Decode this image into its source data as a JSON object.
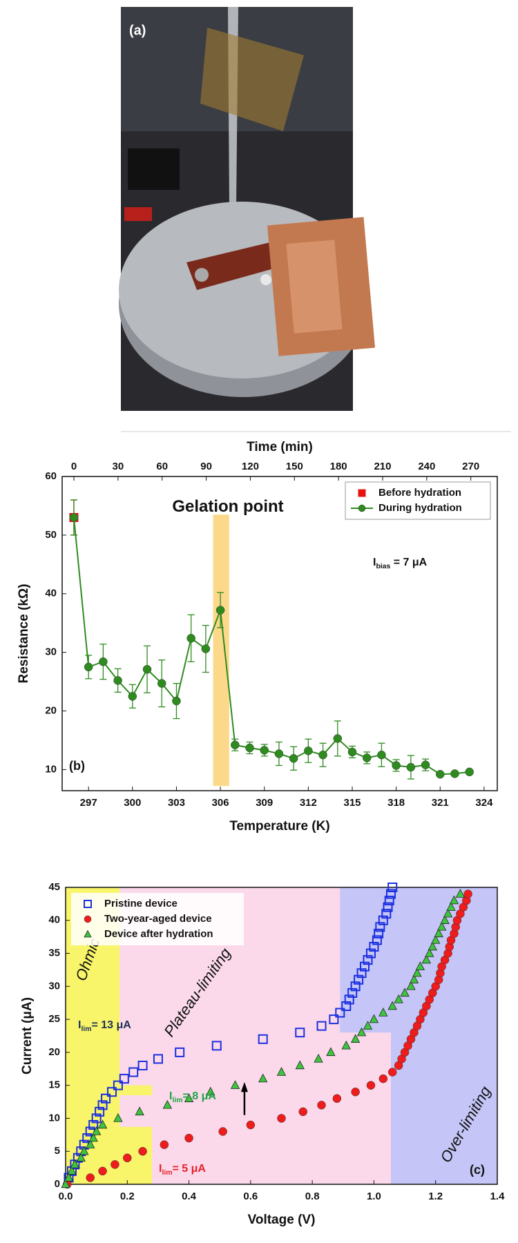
{
  "photo": {
    "label": "(a)"
  },
  "chart_data": [
    {
      "type": "line",
      "panel_label": "(b)",
      "xlabel": "Temperature (K)",
      "x2label": "Time (min)",
      "ylabel": "Resistance (kΩ)",
      "xlim": [
        295.2,
        324.9
      ],
      "xticks": [
        297,
        300,
        303,
        306,
        309,
        312,
        315,
        318,
        321,
        324
      ],
      "x2lim": [
        -8,
        288
      ],
      "x2ticks": [
        0,
        30,
        60,
        90,
        120,
        150,
        180,
        210,
        240,
        270
      ],
      "ylim": [
        6.4,
        60
      ],
      "yticks": [
        10,
        20,
        30,
        40,
        50,
        60
      ],
      "legend": "upper right",
      "band": {
        "x": [
          305.5,
          306.6
        ],
        "y": [
          7.2,
          53.5
        ],
        "color": "#fcd98a"
      },
      "annotations": [
        {
          "parts": [
            "Gelation point"
          ]
        },
        {
          "parts": [
            "I",
            "bias",
            " = 7 μA"
          ]
        }
      ],
      "series": [
        {
          "name": "Before hydration",
          "color": "#e81010",
          "marker": "square",
          "x": [
            296
          ],
          "values": [
            53
          ],
          "errors": [
            3
          ]
        },
        {
          "name": "During hydration",
          "color": "#2e8b1e",
          "marker": "circle",
          "x": [
            296,
            297,
            298,
            299,
            300,
            301,
            302,
            303,
            304,
            305,
            306,
            307,
            308,
            309,
            310,
            311,
            312,
            313,
            314,
            315,
            316,
            317,
            318,
            319,
            320,
            321,
            322,
            323
          ],
          "values": [
            53,
            27.5,
            28.4,
            25.2,
            22.5,
            27.1,
            24.7,
            21.7,
            32.4,
            30.6,
            37.2,
            14.2,
            13.7,
            13.3,
            12.7,
            11.9,
            13.2,
            12.5,
            15.3,
            13,
            12,
            12.5,
            10.7,
            10.4,
            10.8,
            9.2,
            9.3,
            9.6
          ],
          "errors": [
            3,
            2,
            3,
            2,
            2,
            4,
            4,
            3,
            4,
            4,
            3,
            1,
            1,
            1,
            2,
            2,
            2,
            2,
            3,
            1,
            1,
            2,
            1,
            2,
            1,
            0,
            0,
            0
          ]
        }
      ]
    },
    {
      "type": "scatter",
      "panel_label": "(c)",
      "xlabel": "Voltage (V)",
      "ylabel": "Current (μA)",
      "xlim": [
        0,
        1.4
      ],
      "xticks": [
        {
          "value": 0,
          "label": "0.0"
        },
        {
          "value": 0.2,
          "label": "0.2"
        },
        {
          "value": 0.4,
          "label": "0.4"
        },
        {
          "value": 0.6,
          "label": "0.6"
        },
        {
          "value": 0.8,
          "label": "0.8"
        },
        {
          "value": 1,
          "label": "1.0"
        },
        {
          "value": 1.2,
          "label": "1.2"
        },
        {
          "value": 1.4,
          "label": "1.4"
        }
      ],
      "ylim": [
        0,
        45
      ],
      "yticks": [
        0,
        5,
        10,
        15,
        20,
        25,
        30,
        35,
        40,
        45
      ],
      "legend": "upper left",
      "regions": [
        {
          "x": [
            0.175,
            1.055
          ],
          "y": [
            0,
            45
          ],
          "color": "#fbd9ea"
        },
        {
          "x": [
            0,
            0.175
          ],
          "y": [
            0,
            45
          ],
          "color": "#f8f56a"
        },
        {
          "x": [
            0.175,
            0.28
          ],
          "y": [
            0,
            8.7
          ],
          "color": "#f8f56a"
        },
        {
          "x": [
            0.175,
            0.28
          ],
          "y": [
            13.5,
            15
          ],
          "color": "#f8f56a"
        },
        {
          "x": [
            0.89,
            1.4
          ],
          "y": [
            23,
            45
          ],
          "color": "#c5c5f7"
        },
        {
          "x": [
            1.055,
            1.4
          ],
          "y": [
            0,
            45
          ],
          "color": "#c5c5f7"
        }
      ],
      "region_labels": [
        "Ohmic",
        "Plateau-limiting",
        "Over-limiting"
      ],
      "annotations": [
        {
          "parts": [
            "I",
            "lim",
            "= 13 μA"
          ],
          "color": "#1f2f5a"
        },
        {
          "parts": [
            "I",
            "lim",
            "= 8 μA"
          ],
          "color": "#1fa34a"
        },
        {
          "parts": [
            "I",
            "lim",
            "= 5 μA"
          ],
          "color": "#e8202a"
        }
      ],
      "series": [
        {
          "name": "Pristine device",
          "color": "#1a2fe0",
          "marker": "square",
          "x": [
            0.01,
            0.02,
            0.03,
            0.04,
            0.05,
            0.06,
            0.07,
            0.08,
            0.09,
            0.1,
            0.11,
            0.12,
            0.13,
            0.15,
            0.17,
            0.19,
            0.22,
            0.25,
            0.3,
            0.37,
            0.49,
            0.64,
            0.76,
            0.83,
            0.87,
            0.89,
            0.91,
            0.92,
            0.93,
            0.94,
            0.95,
            0.96,
            0.97,
            0.98,
            0.99,
            1,
            1.01,
            1.015,
            1.02,
            1.03,
            1.04,
            1.045,
            1.05,
            1.055,
            1.06
          ],
          "values": [
            1,
            2,
            3,
            4,
            5,
            6,
            7,
            8,
            9,
            10,
            11,
            12,
            13,
            14,
            15,
            16,
            17,
            18,
            19,
            20,
            21,
            22,
            23,
            24,
            25,
            26,
            27,
            28,
            29,
            30,
            31,
            32,
            33,
            34,
            35,
            36,
            37,
            38,
            39,
            40,
            41,
            42,
            43,
            44,
            45
          ]
        },
        {
          "name": "Two-year-aged device",
          "color": "#ee1c1c",
          "marker": "circle",
          "x": [
            0.005,
            0.08,
            0.12,
            0.16,
            0.2,
            0.25,
            0.32,
            0.4,
            0.51,
            0.6,
            0.7,
            0.77,
            0.83,
            0.88,
            0.94,
            0.99,
            1.03,
            1.06,
            1.08,
            1.09,
            1.1,
            1.11,
            1.12,
            1.13,
            1.14,
            1.15,
            1.16,
            1.17,
            1.18,
            1.19,
            1.2,
            1.21,
            1.215,
            1.22,
            1.23,
            1.24,
            1.245,
            1.25,
            1.26,
            1.265,
            1.27,
            1.28,
            1.29,
            1.3,
            1.305
          ],
          "values": [
            0,
            1,
            2,
            3,
            4,
            5,
            6,
            7,
            8,
            9,
            10,
            11,
            12,
            13,
            14,
            15,
            16,
            17,
            18,
            19,
            20,
            21,
            22,
            23,
            24,
            25,
            26,
            27,
            28,
            29,
            30,
            31,
            32,
            33,
            34,
            35,
            36,
            37,
            38,
            39,
            40,
            41,
            42,
            43,
            44
          ]
        },
        {
          "name": "Device after hydration",
          "color": "#3fc43f",
          "marker": "triangle",
          "x": [
            0,
            0.01,
            0.02,
            0.03,
            0.05,
            0.06,
            0.08,
            0.09,
            0.1,
            0.12,
            0.17,
            0.24,
            0.33,
            0.4,
            0.47,
            0.55,
            0.64,
            0.7,
            0.76,
            0.82,
            0.86,
            0.91,
            0.94,
            0.96,
            0.98,
            1,
            1.03,
            1.06,
            1.08,
            1.1,
            1.12,
            1.13,
            1.14,
            1.15,
            1.17,
            1.18,
            1.19,
            1.2,
            1.21,
            1.22,
            1.23,
            1.24,
            1.25,
            1.26,
            1.28
          ],
          "values": [
            0,
            1,
            2,
            3,
            4,
            5,
            6,
            7,
            8,
            9,
            10,
            11,
            12,
            13,
            14,
            15,
            16,
            17,
            18,
            19,
            20,
            21,
            22,
            23,
            24,
            25,
            26,
            27,
            28,
            29,
            30,
            31,
            32,
            33,
            34,
            35,
            36,
            37,
            38,
            39,
            40,
            41,
            42,
            43,
            44
          ]
        }
      ]
    }
  ]
}
